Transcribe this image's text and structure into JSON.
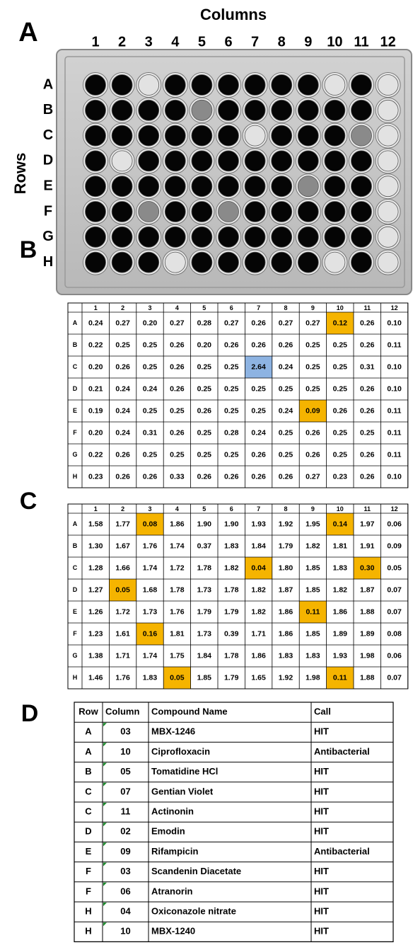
{
  "panel_labels": [
    "A",
    "B",
    "C",
    "D"
  ],
  "plate": {
    "columns_title": "Columns",
    "rows_title": "Rows",
    "columns": [
      "1",
      "2",
      "3",
      "4",
      "5",
      "6",
      "7",
      "8",
      "9",
      "10",
      "11",
      "12"
    ],
    "rows": [
      "A",
      "B",
      "C",
      "D",
      "E",
      "F",
      "G",
      "H"
    ]
  },
  "table_b": {
    "columns": [
      "1",
      "2",
      "3",
      "4",
      "5",
      "6",
      "7",
      "8",
      "9",
      "10",
      "11",
      "12"
    ],
    "rows": [
      {
        "label": "A",
        "cells": [
          "0.24",
          "0.27",
          "0.20",
          "0.27",
          "0.28",
          "0.27",
          "0.26",
          "0.27",
          "0.27",
          "0.12",
          "0.26",
          "0.10"
        ]
      },
      {
        "label": "B",
        "cells": [
          "0.22",
          "0.25",
          "0.25",
          "0.26",
          "0.20",
          "0.26",
          "0.26",
          "0.26",
          "0.25",
          "0.25",
          "0.26",
          "0.11"
        ]
      },
      {
        "label": "C",
        "cells": [
          "0.20",
          "0.26",
          "0.25",
          "0.26",
          "0.25",
          "0.25",
          "2.64",
          "0.24",
          "0.25",
          "0.25",
          "0.31",
          "0.10"
        ]
      },
      {
        "label": "D",
        "cells": [
          "0.21",
          "0.24",
          "0.24",
          "0.26",
          "0.25",
          "0.25",
          "0.25",
          "0.25",
          "0.25",
          "0.25",
          "0.26",
          "0.10"
        ]
      },
      {
        "label": "E",
        "cells": [
          "0.19",
          "0.24",
          "0.25",
          "0.25",
          "0.26",
          "0.25",
          "0.25",
          "0.24",
          "0.09",
          "0.26",
          "0.26",
          "0.11"
        ]
      },
      {
        "label": "F",
        "cells": [
          "0.20",
          "0.24",
          "0.31",
          "0.26",
          "0.25",
          "0.28",
          "0.24",
          "0.25",
          "0.26",
          "0.25",
          "0.25",
          "0.11"
        ]
      },
      {
        "label": "G",
        "cells": [
          "0.22",
          "0.26",
          "0.25",
          "0.25",
          "0.25",
          "0.25",
          "0.26",
          "0.25",
          "0.26",
          "0.25",
          "0.26",
          "0.11"
        ]
      },
      {
        "label": "H",
        "cells": [
          "0.23",
          "0.26",
          "0.26",
          "0.33",
          "0.26",
          "0.26",
          "0.26",
          "0.26",
          "0.27",
          "0.23",
          "0.26",
          "0.10"
        ]
      }
    ]
  },
  "table_c": {
    "columns": [
      "1",
      "2",
      "3",
      "4",
      "5",
      "6",
      "7",
      "8",
      "9",
      "10",
      "11",
      "12"
    ],
    "rows": [
      {
        "label": "A",
        "cells": [
          "1.58",
          "1.77",
          "0.08",
          "1.86",
          "1.90",
          "1.90",
          "1.93",
          "1.92",
          "1.95",
          "0.14",
          "1.97",
          "0.06"
        ]
      },
      {
        "label": "B",
        "cells": [
          "1.30",
          "1.67",
          "1.76",
          "1.74",
          "0.37",
          "1.83",
          "1.84",
          "1.79",
          "1.82",
          "1.81",
          "1.91",
          "0.09"
        ]
      },
      {
        "label": "C",
        "cells": [
          "1.28",
          "1.66",
          "1.74",
          "1.72",
          "1.78",
          "1.82",
          "0.04",
          "1.80",
          "1.85",
          "1.83",
          "0.30",
          "0.05"
        ]
      },
      {
        "label": "D",
        "cells": [
          "1.27",
          "0.05",
          "1.68",
          "1.78",
          "1.73",
          "1.78",
          "1.82",
          "1.87",
          "1.85",
          "1.82",
          "1.87",
          "0.07"
        ]
      },
      {
        "label": "E",
        "cells": [
          "1.26",
          "1.72",
          "1.73",
          "1.76",
          "1.79",
          "1.79",
          "1.82",
          "1.86",
          "0.11",
          "1.86",
          "1.88",
          "0.07"
        ]
      },
      {
        "label": "F",
        "cells": [
          "1.23",
          "1.61",
          "0.16",
          "1.81",
          "1.73",
          "0.39",
          "1.71",
          "1.86",
          "1.85",
          "1.89",
          "1.89",
          "0.08"
        ]
      },
      {
        "label": "G",
        "cells": [
          "1.38",
          "1.71",
          "1.74",
          "1.75",
          "1.84",
          "1.78",
          "1.86",
          "1.83",
          "1.83",
          "1.93",
          "1.98",
          "0.06"
        ]
      },
      {
        "label": "H",
        "cells": [
          "1.46",
          "1.76",
          "1.83",
          "0.05",
          "1.85",
          "1.79",
          "1.65",
          "1.92",
          "1.98",
          "0.11",
          "1.88",
          "0.07"
        ]
      }
    ]
  },
  "table_d": {
    "header": [
      "Row",
      "Column",
      "Compound Name",
      "Call"
    ],
    "rows": [
      [
        "A",
        "03",
        "MBX-1246",
        "HIT"
      ],
      [
        "A",
        "10",
        "Ciprofloxacin",
        "Antibacterial"
      ],
      [
        "B",
        "05",
        "Tomatidine HCl",
        "HIT"
      ],
      [
        "C",
        "07",
        "Gentian Violet",
        "HIT"
      ],
      [
        "C",
        "11",
        "Actinonin",
        "HIT"
      ],
      [
        "D",
        "02",
        "Emodin",
        "HIT"
      ],
      [
        "E",
        "09",
        "Rifampicin",
        "Antibacterial"
      ],
      [
        "F",
        "03",
        "Scandenin Diacetate",
        "HIT"
      ],
      [
        "F",
        "06",
        "Atranorin",
        "HIT"
      ],
      [
        "H",
        "04",
        "Oxiconazole nitrate",
        "HIT"
      ],
      [
        "H",
        "10",
        "MBX-1240",
        "HIT"
      ]
    ]
  }
}
